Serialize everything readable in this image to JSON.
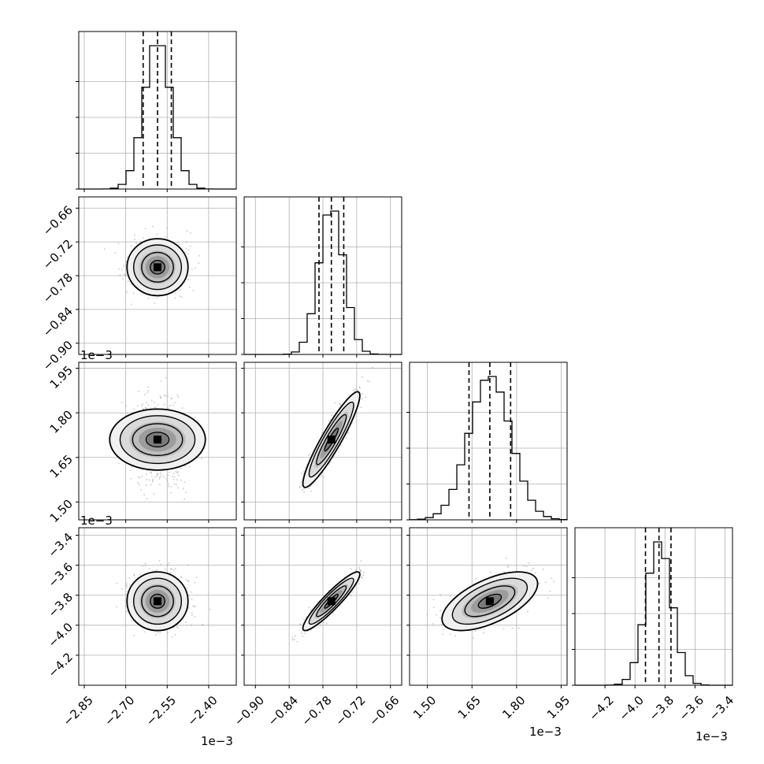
{
  "chart_data": {
    "type": "corner",
    "offset_text": "1e−3",
    "parameters": [
      {
        "range": [
          -2.87,
          -2.3
        ],
        "ticks": [
          -2.85,
          -2.7,
          -2.55,
          -2.4
        ],
        "tick_labels": [
          "−2.85",
          "−2.70",
          "−2.55",
          "−2.40"
        ],
        "mean": -2.585,
        "sd": 0.048,
        "quantiles": [
          -2.637,
          -2.585,
          -2.535
        ]
      },
      {
        "range": [
          -0.92,
          -0.64
        ],
        "ticks": [
          -0.9,
          -0.84,
          -0.78,
          -0.72,
          -0.66
        ],
        "tick_labels": [
          "−0.90",
          "−0.84",
          "−0.78",
          "−0.72",
          "−0.66"
        ],
        "mean": -0.765,
        "sd": 0.022,
        "quantiles": [
          -0.787,
          -0.765,
          -0.743
        ]
      },
      {
        "range": [
          1.44,
          1.97
        ],
        "ticks": [
          1.5,
          1.65,
          1.8,
          1.95
        ],
        "tick_labels": [
          "1.50",
          "1.65",
          "1.80",
          "1.95"
        ],
        "mean": 1.71,
        "sd": 0.07,
        "quantiles": [
          1.64,
          1.71,
          1.78
        ]
      },
      {
        "range": [
          -4.4,
          -3.35
        ],
        "ticks": [
          -4.2,
          -4.0,
          -3.8,
          -3.6,
          -3.4
        ],
        "tick_labels": [
          "−4.2",
          "−4.0",
          "−3.8",
          "−3.6",
          "−3.4"
        ],
        "mean": -3.84,
        "sd": 0.085,
        "quantiles": [
          -3.93,
          -3.84,
          -3.76
        ]
      }
    ],
    "correlations": [
      [
        1,
        0,
        0,
        0
      ],
      [
        0,
        1,
        0.92,
        0.92
      ],
      [
        0,
        0.92,
        1,
        0.6
      ],
      [
        0,
        0.92,
        0.6,
        1
      ]
    ],
    "hist_bins": 20,
    "grid": true,
    "colors": {
      "line": "#000000",
      "points": "#9a9a9a",
      "grid": "#b0b0b0"
    }
  }
}
